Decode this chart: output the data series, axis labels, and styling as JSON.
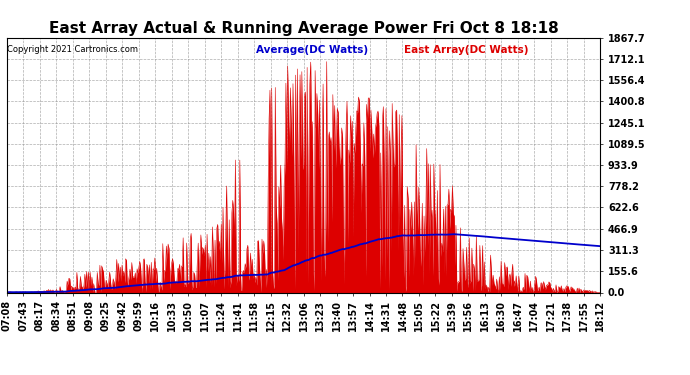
{
  "title": "East Array Actual & Running Average Power Fri Oct 8 18:18",
  "copyright": "Copyright 2021 Cartronics.com",
  "legend_avg": "Average(DC Watts)",
  "legend_east": "East Array(DC Watts)",
  "ylabel_ticks": [
    0.0,
    155.6,
    311.3,
    466.9,
    622.6,
    778.2,
    933.9,
    1089.5,
    1245.1,
    1400.8,
    1556.4,
    1712.1,
    1867.7
  ],
  "ylim": [
    0,
    1867.7
  ],
  "bg_color": "#ffffff",
  "bar_color": "#dd0000",
  "avg_color": "#0000cc",
  "grid_color": "#999999",
  "title_fontsize": 11,
  "tick_fontsize": 7,
  "x_labels": [
    "07:08",
    "07:43",
    "08:17",
    "08:34",
    "08:51",
    "09:08",
    "09:25",
    "09:42",
    "09:59",
    "10:16",
    "10:33",
    "10:50",
    "11:07",
    "11:24",
    "11:41",
    "11:58",
    "12:15",
    "12:32",
    "13:06",
    "13:23",
    "13:40",
    "13:57",
    "14:14",
    "14:31",
    "14:48",
    "15:05",
    "15:22",
    "15:39",
    "15:56",
    "16:13",
    "16:30",
    "16:47",
    "17:04",
    "17:21",
    "17:38",
    "17:55",
    "18:12"
  ]
}
